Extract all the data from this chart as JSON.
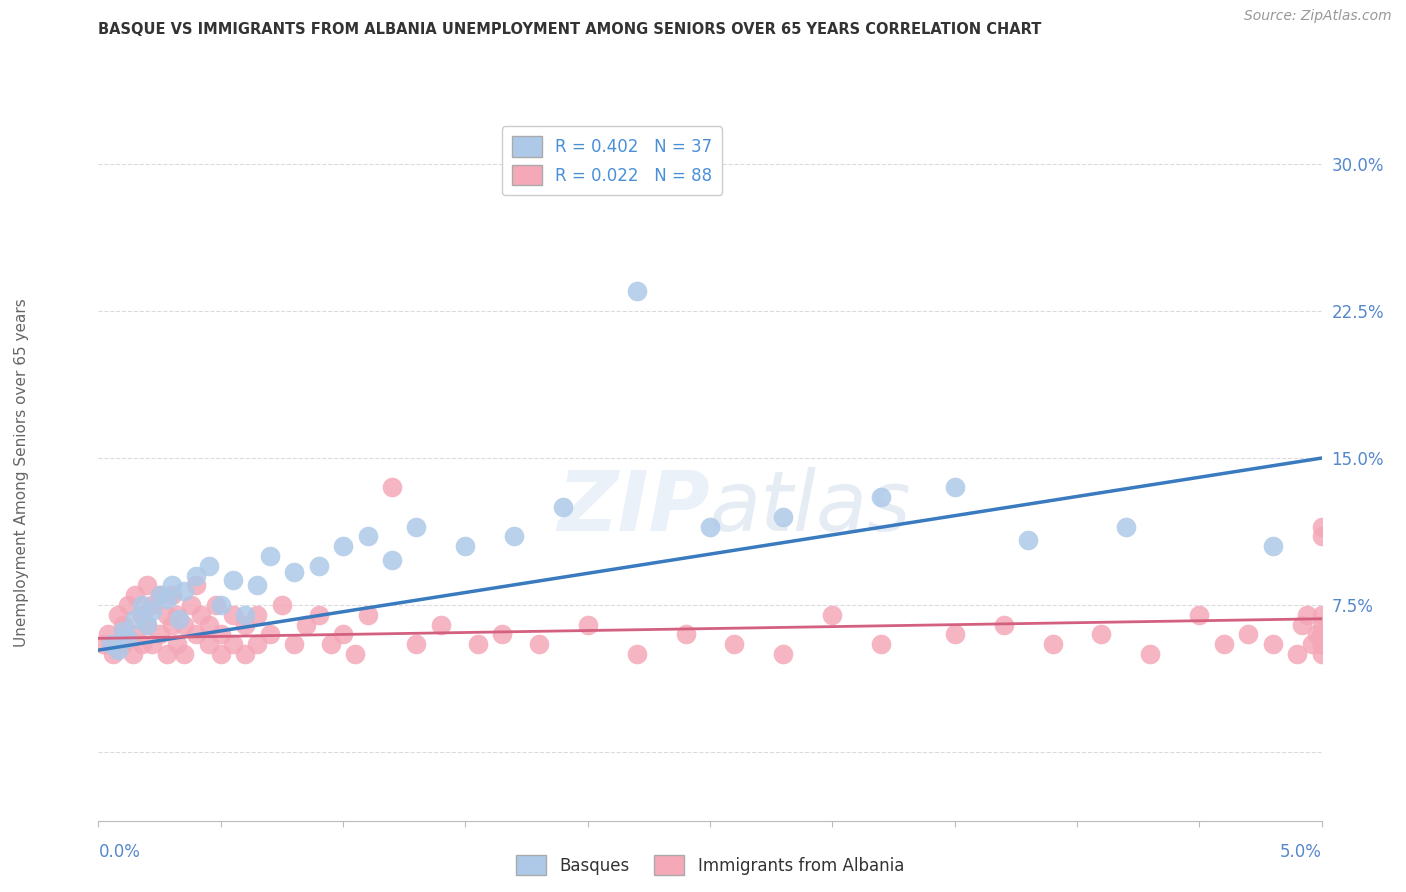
{
  "title": "BASQUE VS IMMIGRANTS FROM ALBANIA UNEMPLOYMENT AMONG SENIORS OVER 65 YEARS CORRELATION CHART",
  "source": "Source: ZipAtlas.com",
  "ylabel": "Unemployment Among Seniors over 65 years",
  "xmin": 0.0,
  "xmax": 5.0,
  "ymin": -3.5,
  "ymax": 32.0,
  "yticks": [
    0.0,
    7.5,
    15.0,
    22.5,
    30.0
  ],
  "ytick_labels": [
    "",
    "7.5%",
    "15.0%",
    "22.5%",
    "30.0%"
  ],
  "series1_label": "Basques",
  "series1_R": 0.402,
  "series1_N": 37,
  "series1_color": "#aec9e8",
  "series1_line_color": "#3a7abf",
  "series2_label": "Immigrants from Albania",
  "series2_R": 0.022,
  "series2_N": 88,
  "series2_color": "#f4a8b8",
  "series2_line_color": "#d46080",
  "background_color": "#ffffff",
  "grid_color": "#cccccc",
  "trend1_x0": 0.0,
  "trend1_y0": 5.2,
  "trend1_x1": 5.0,
  "trend1_y1": 15.0,
  "trend2_x0": 0.0,
  "trend2_y0": 5.8,
  "trend2_x1": 5.0,
  "trend2_y1": 6.8,
  "basque_x": [
    0.05,
    0.08,
    0.1,
    0.12,
    0.15,
    0.18,
    0.2,
    0.22,
    0.25,
    0.28,
    0.3,
    0.33,
    0.35,
    0.4,
    0.45,
    0.5,
    0.55,
    0.6,
    0.65,
    0.7,
    0.8,
    0.9,
    1.0,
    1.1,
    1.2,
    1.3,
    1.5,
    1.7,
    1.9,
    2.2,
    2.5,
    2.8,
    3.2,
    3.5,
    3.8,
    4.2,
    4.8
  ],
  "basque_y": [
    5.5,
    5.2,
    6.2,
    5.8,
    6.8,
    7.5,
    6.5,
    7.2,
    8.0,
    7.8,
    8.5,
    6.8,
    8.2,
    9.0,
    9.5,
    7.5,
    8.8,
    7.0,
    8.5,
    10.0,
    9.2,
    9.5,
    10.5,
    11.0,
    9.8,
    11.5,
    10.5,
    11.0,
    12.5,
    23.5,
    11.5,
    12.0,
    13.0,
    13.5,
    10.8,
    11.5,
    10.5
  ],
  "albania_x": [
    0.02,
    0.04,
    0.06,
    0.08,
    0.1,
    0.1,
    0.12,
    0.14,
    0.15,
    0.15,
    0.18,
    0.18,
    0.2,
    0.2,
    0.22,
    0.22,
    0.25,
    0.25,
    0.28,
    0.28,
    0.3,
    0.3,
    0.32,
    0.32,
    0.35,
    0.35,
    0.38,
    0.4,
    0.4,
    0.42,
    0.45,
    0.45,
    0.48,
    0.5,
    0.5,
    0.55,
    0.55,
    0.6,
    0.6,
    0.65,
    0.65,
    0.7,
    0.75,
    0.8,
    0.85,
    0.9,
    0.95,
    1.0,
    1.05,
    1.1,
    1.2,
    1.3,
    1.4,
    1.55,
    1.65,
    1.8,
    2.0,
    2.2,
    2.4,
    2.6,
    2.8,
    3.0,
    3.2,
    3.5,
    3.7,
    3.9,
    4.1,
    4.3,
    4.5,
    4.6,
    4.7,
    4.8,
    4.9,
    4.92,
    4.94,
    4.96,
    4.98,
    5.0,
    5.0,
    5.0,
    5.0,
    5.0,
    5.0,
    5.0,
    5.0,
    5.0,
    5.0,
    5.0
  ],
  "albania_y": [
    5.5,
    6.0,
    5.0,
    7.0,
    6.5,
    5.5,
    7.5,
    5.0,
    8.0,
    6.0,
    7.0,
    5.5,
    8.5,
    6.5,
    7.5,
    5.5,
    8.0,
    6.0,
    7.0,
    5.0,
    6.5,
    8.0,
    7.0,
    5.5,
    6.5,
    5.0,
    7.5,
    8.5,
    6.0,
    7.0,
    5.5,
    6.5,
    7.5,
    6.0,
    5.0,
    7.0,
    5.5,
    6.5,
    5.0,
    7.0,
    5.5,
    6.0,
    7.5,
    5.5,
    6.5,
    7.0,
    5.5,
    6.0,
    5.0,
    7.0,
    13.5,
    5.5,
    6.5,
    5.5,
    6.0,
    5.5,
    6.5,
    5.0,
    6.0,
    5.5,
    5.0,
    7.0,
    5.5,
    6.0,
    6.5,
    5.5,
    6.0,
    5.0,
    7.0,
    5.5,
    6.0,
    5.5,
    5.0,
    6.5,
    7.0,
    5.5,
    6.0,
    11.0,
    5.5,
    6.0,
    5.5,
    5.0,
    6.5,
    7.0,
    5.5,
    6.0,
    5.5,
    11.5
  ]
}
